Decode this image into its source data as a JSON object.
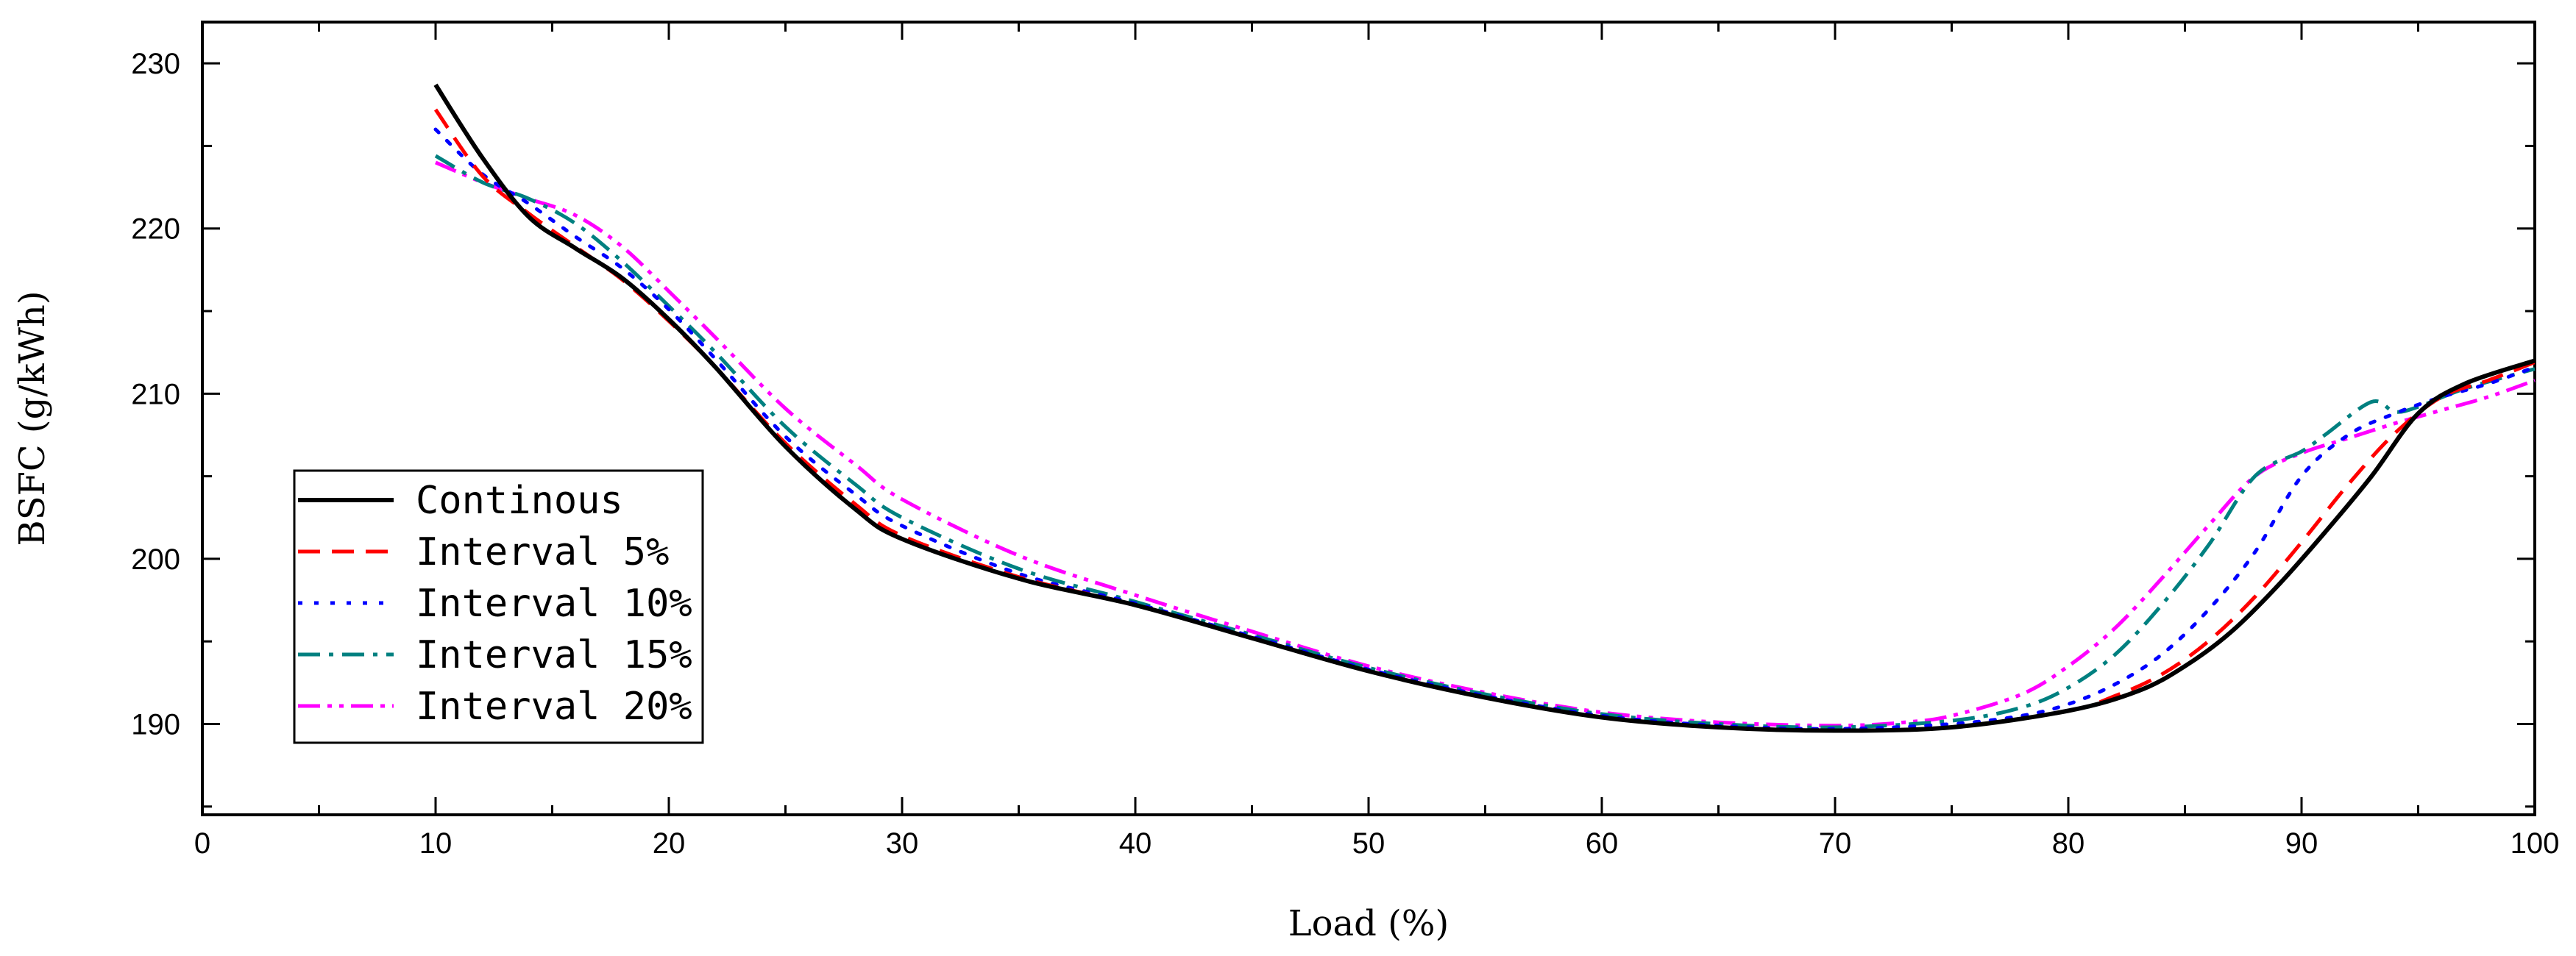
{
  "chart_data": {
    "type": "line",
    "xlabel": "Load (%)",
    "ylabel": "BSFC (g/kWh)",
    "xlim": [
      0,
      100
    ],
    "ylim": [
      184.5,
      232.5
    ],
    "xticks": [
      0,
      10,
      20,
      30,
      40,
      50,
      60,
      70,
      80,
      90,
      100
    ],
    "xtick_labels": [
      "0",
      "10",
      "20",
      "30",
      "40",
      "50",
      "60",
      "70",
      "80",
      "90",
      "100"
    ],
    "yticks": [
      190,
      200,
      210,
      220,
      230
    ],
    "ytick_labels": [
      "190",
      "200",
      "210",
      "220",
      "230"
    ],
    "grid": false,
    "legend_position": "left-middle",
    "series": [
      {
        "name": "Continous",
        "color": "#000000",
        "dash": "solid",
        "x": [
          10,
          12,
          14,
          16,
          18,
          20,
          22,
          25,
          28,
          30,
          35,
          40,
          45,
          50,
          55,
          60,
          65,
          70,
          75,
          80,
          83,
          85,
          87,
          89,
          91,
          93,
          95,
          97,
          100
        ],
        "y": [
          228.7,
          224.3,
          220.7,
          218.8,
          217.0,
          214.5,
          211.6,
          206.8,
          203.0,
          201.2,
          198.8,
          197.2,
          195.2,
          193.2,
          191.6,
          190.4,
          189.8,
          189.6,
          189.8,
          190.8,
          192.0,
          193.5,
          195.6,
          198.4,
          201.6,
          205.0,
          208.8,
          210.6,
          212.0
        ]
      },
      {
        "name": "Interval 5%",
        "color": "#ff0000",
        "dash": "dashed",
        "x": [
          10,
          12,
          14,
          16,
          18,
          20,
          22,
          25,
          28,
          30,
          35,
          40,
          45,
          50,
          55,
          60,
          65,
          70,
          75,
          80,
          82,
          84,
          86,
          88,
          90,
          92,
          94,
          96,
          98,
          100
        ],
        "y": [
          227.2,
          223.2,
          220.9,
          218.9,
          216.9,
          214.4,
          211.6,
          207.0,
          203.3,
          201.4,
          198.9,
          197.2,
          195.2,
          193.2,
          191.6,
          190.4,
          189.8,
          189.6,
          189.8,
          190.8,
          191.7,
          193.0,
          195.0,
          197.7,
          201.0,
          204.5,
          207.6,
          209.8,
          210.8,
          211.9
        ]
      },
      {
        "name": "Interval 10%",
        "color": "#0000ff",
        "dash": "dotted",
        "x": [
          10,
          12,
          14,
          16,
          18,
          20,
          22,
          25,
          28,
          30,
          35,
          40,
          45,
          50,
          55,
          60,
          65,
          70,
          75,
          78,
          80,
          82,
          84,
          86,
          88,
          90,
          92,
          94,
          96,
          98,
          100
        ],
        "y": [
          226.0,
          223.3,
          221.5,
          219.5,
          217.6,
          215.1,
          212.1,
          207.4,
          203.9,
          202.0,
          199.1,
          197.3,
          195.3,
          193.3,
          191.7,
          190.5,
          189.9,
          189.7,
          190.0,
          190.5,
          191.2,
          192.4,
          194.2,
          196.9,
          200.4,
          205.0,
          207.5,
          208.8,
          209.8,
          210.6,
          211.6
        ]
      },
      {
        "name": "Interval 15%",
        "color": "#008080",
        "dash": "dashdot",
        "x": [
          10,
          12,
          14,
          16,
          18,
          20,
          22,
          25,
          28,
          30,
          35,
          40,
          45,
          50,
          55,
          60,
          65,
          70,
          75,
          78,
          80,
          82,
          84,
          86,
          88,
          90,
          91,
          93,
          94,
          95,
          97,
          100
        ],
        "y": [
          224.4,
          222.8,
          221.8,
          220.3,
          218.0,
          215.3,
          212.5,
          208.0,
          204.5,
          202.5,
          199.4,
          197.4,
          195.4,
          193.4,
          191.8,
          190.6,
          190.0,
          189.8,
          190.2,
          191.0,
          192.2,
          194.2,
          197.2,
          200.8,
          205.0,
          206.5,
          207.5,
          209.5,
          208.9,
          209.2,
          210.3,
          211.5
        ]
      },
      {
        "name": "Interval 20%",
        "color": "#ff00ff",
        "dash": "dashdotdot",
        "x": [
          10,
          12,
          14,
          16,
          18,
          20,
          22,
          25,
          28,
          30,
          35,
          40,
          45,
          50,
          55,
          60,
          65,
          70,
          73,
          75,
          78,
          80,
          82,
          84,
          86,
          88,
          90,
          92,
          94,
          96,
          98,
          100
        ],
        "y": [
          224.0,
          222.8,
          221.8,
          220.8,
          218.9,
          216.2,
          213.4,
          209.1,
          205.7,
          203.6,
          200.2,
          197.8,
          195.6,
          193.5,
          191.9,
          190.7,
          190.1,
          189.9,
          190.1,
          190.5,
          191.8,
          193.5,
          195.8,
          198.8,
          202.0,
          205.0,
          206.4,
          207.3,
          208.2,
          209.0,
          209.8,
          210.8
        ]
      }
    ]
  }
}
